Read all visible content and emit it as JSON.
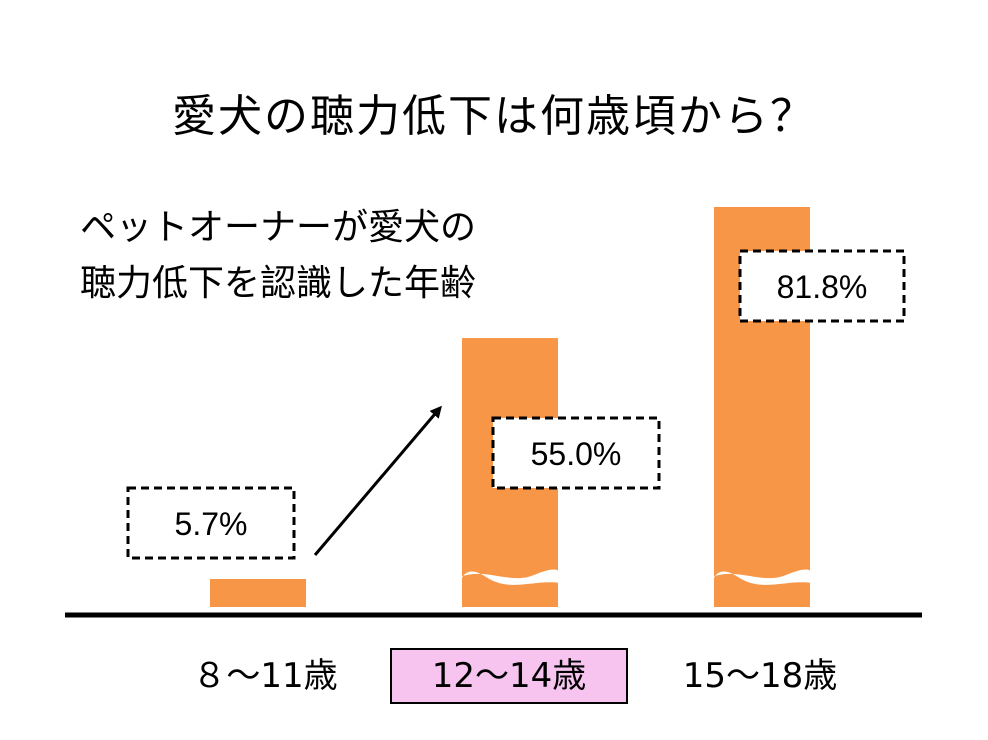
{
  "chart_data": {
    "type": "bar",
    "title": "愛犬の聴力低下は何歳頃から？",
    "subtitle_lines": [
      "ペットオーナーが愛犬の",
      "聴力低下を認識した年齢"
    ],
    "categories": [
      "８～11歳",
      "12～14歳",
      "15～18歳"
    ],
    "values": [
      5.7,
      55.0,
      81.8
    ],
    "value_labels": [
      "5.7%",
      "55.0%",
      "81.8%"
    ],
    "highlighted_category": "12～14歳",
    "axis_break": true,
    "ylim": [
      0,
      100
    ],
    "colors": {
      "bar": "#f79646",
      "highlight_bg": "#f7c4f0",
      "axis": "#000000"
    }
  }
}
